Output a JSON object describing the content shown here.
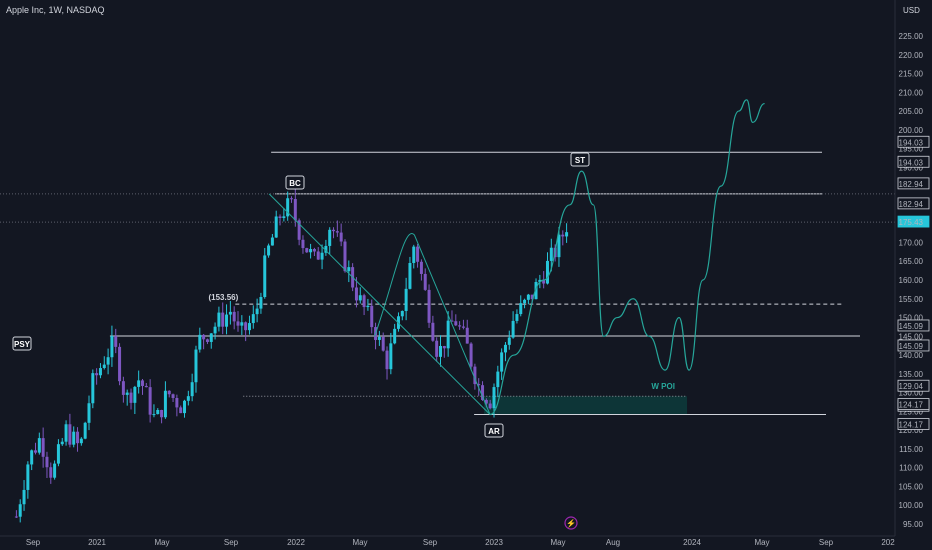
{
  "header": {
    "title": "Apple Inc, 1W, NASDAQ",
    "currency": "USD"
  },
  "colors": {
    "background": "#131722",
    "bull": "#26c6da",
    "bear": "#7e57c2",
    "projection": "#26a69a",
    "zone": "#0d3b3b",
    "level_line": "#d1d4dc",
    "current_price_bg": "#26c6da"
  },
  "chart_data": {
    "type": "candlestick",
    "timeframe": "1W",
    "ylim": [
      95,
      230
    ],
    "y_ticks": [
      "95.00",
      "100.00",
      "105.00",
      "110.00",
      "115.00",
      "120.00",
      "125.00",
      "130.00",
      "135.00",
      "140.00",
      "145.00",
      "150.00",
      "155.00",
      "160.00",
      "165.00",
      "170.00",
      "175.00",
      "180.00",
      "185.00",
      "190.00",
      "195.00",
      "200.00",
      "205.00",
      "210.00",
      "215.00",
      "220.00",
      "225.00"
    ],
    "x_ticks": [
      "Sep",
      "2021",
      "May",
      "Sep",
      "2022",
      "May",
      "Sep",
      "2023",
      "May",
      "Aug",
      "2024",
      "May",
      "Sep",
      "202"
    ],
    "price_path": [
      [
        2020.6,
        97
      ],
      [
        2020.66,
        112
      ],
      [
        2020.72,
        118
      ],
      [
        2020.78,
        108
      ],
      [
        2020.85,
        120
      ],
      [
        2020.92,
        115
      ],
      [
        2020.98,
        132
      ],
      [
        2021.05,
        140
      ],
      [
        2021.09,
        143
      ],
      [
        2021.15,
        128
      ],
      [
        2021.22,
        134
      ],
      [
        2021.3,
        122
      ],
      [
        2021.36,
        130
      ],
      [
        2021.44,
        126
      ],
      [
        2021.52,
        144
      ],
      [
        2021.6,
        148
      ],
      [
        2021.68,
        152
      ],
      [
        2021.72,
        145
      ],
      [
        2021.8,
        150
      ],
      [
        2021.86,
        167
      ],
      [
        2021.93,
        178
      ],
      [
        2021.98,
        180
      ],
      [
        2022.04,
        170
      ],
      [
        2022.1,
        165
      ],
      [
        2022.18,
        175
      ],
      [
        2022.25,
        165
      ],
      [
        2022.32,
        155
      ],
      [
        2022.4,
        147
      ],
      [
        2022.46,
        138
      ],
      [
        2022.52,
        148
      ],
      [
        2022.6,
        170
      ],
      [
        2022.66,
        155
      ],
      [
        2022.72,
        140
      ],
      [
        2022.8,
        150
      ],
      [
        2022.86,
        143
      ],
      [
        2022.92,
        132
      ],
      [
        2022.98,
        128
      ],
      [
        2023.04,
        140
      ],
      [
        2023.1,
        150
      ],
      [
        2023.18,
        155
      ],
      [
        2023.25,
        162
      ],
      [
        2023.33,
        170
      ],
      [
        2023.37,
        175.43
      ]
    ],
    "current_price": "175.43",
    "levels": [
      {
        "name": "upper-level",
        "value": 194.03,
        "label": "194.03",
        "x_start": 2021.88,
        "x_end": 2024.1
      },
      {
        "name": "bc-level",
        "value": 182.94,
        "label": "182.94",
        "x_start": 2021.9,
        "x_end": 2024.1
      },
      {
        "name": "psy-level",
        "value": 145.09,
        "label": "145.09",
        "x_start": 2021.07,
        "x_end": 2024.2
      },
      {
        "name": "ar-level",
        "value": 124.17,
        "label": "124.17",
        "x_start": 2022.9,
        "x_end": 2024.12
      }
    ],
    "dashed_level": {
      "value": 153.56,
      "label": "(153.56)"
    },
    "dotted_level": {
      "value": 129.04,
      "label": "129.04"
    },
    "poi_zone": {
      "top": 129.04,
      "bottom": 124.17,
      "label": "W POI"
    },
    "annotations": [
      "PSY",
      "BC",
      "AR",
      "ST"
    ],
    "projection_path": [
      [
        2022.98,
        124.17
      ],
      [
        2023.1,
        140
      ],
      [
        2023.25,
        160
      ],
      [
        2023.38,
        180
      ],
      [
        2023.44,
        189
      ],
      [
        2023.5,
        180
      ],
      [
        2023.55,
        145
      ],
      [
        2023.62,
        150
      ],
      [
        2023.7,
        155
      ],
      [
        2023.78,
        145
      ],
      [
        2023.86,
        136
      ],
      [
        2023.93,
        150
      ],
      [
        2023.98,
        136
      ],
      [
        2024.05,
        160
      ],
      [
        2024.14,
        185
      ],
      [
        2024.23,
        205
      ],
      [
        2024.27,
        208
      ],
      [
        2024.3,
        202
      ],
      [
        2024.36,
        207
      ]
    ],
    "axis_tags": [
      "194.03",
      "194.03",
      "182.94",
      "182.94",
      "175.43",
      "145.09",
      "145.09",
      "129.04",
      "129.04",
      "124.17",
      "124.17"
    ]
  }
}
